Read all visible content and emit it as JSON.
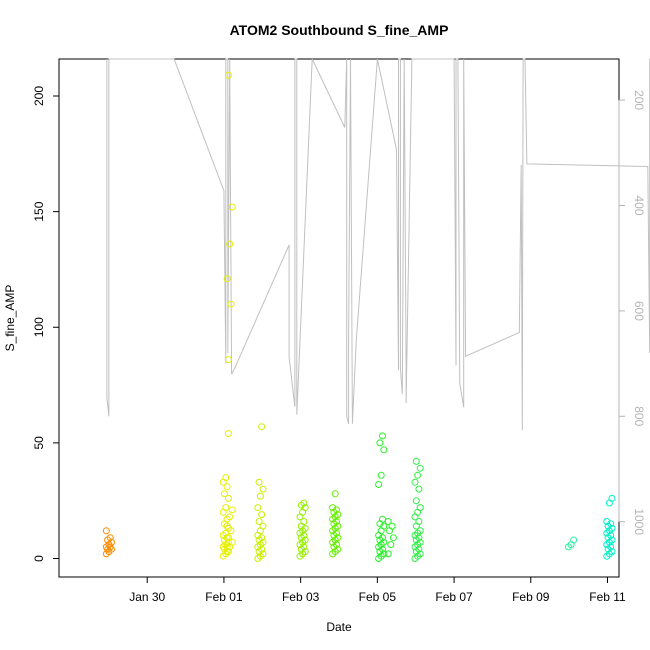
{
  "chart_data": {
    "type": "scatter",
    "title": "ATOM2 Southbound S_fine_AMP",
    "xlabel": "Date",
    "ylabel": "S_fine_AMP",
    "xlim": [
      -2.3,
      12.3
    ],
    "ylim": [
      -8,
      216
    ],
    "x_origin_label": "Jan 30",
    "x_ticks": [
      0,
      2,
      4,
      6,
      8,
      10,
      12
    ],
    "x_tick_labels": [
      "Jan 30",
      "Feb 01",
      "Feb 03",
      "Feb 05",
      "Feb 07",
      "Feb 09",
      "Feb 11"
    ],
    "y_ticks": [
      0,
      50,
      100,
      150,
      200
    ],
    "y_tick_labels": [
      "0",
      "50",
      "100",
      "150",
      "200"
    ],
    "right_axis": {
      "reversed": true,
      "lim": [
        122,
        1105
      ],
      "ticks": [
        200,
        400,
        600,
        800,
        1000
      ],
      "tick_labels": [
        "200",
        "400",
        "600",
        "800",
        "1000"
      ],
      "color": "#b4b4b4"
    },
    "grid": false,
    "legend": "none",
    "series": [
      {
        "marker": "open-circle",
        "groups": [
          {
            "x": -1.0,
            "color": "#ff8c00",
            "values": [
              2,
              3,
              4,
              4,
              5,
              5,
              6,
              7,
              8,
              9,
              12
            ]
          },
          {
            "x": 2.05,
            "color": "#e6f000",
            "values": [
              1,
              2,
              3,
              4,
              5,
              5,
              6,
              7,
              8,
              9,
              10,
              11,
              13,
              15,
              17,
              20,
              22,
              26,
              28,
              31,
              33,
              35,
              54
            ]
          },
          {
            "x": 2.15,
            "color": "#e6f000",
            "values": [
              3,
              5,
              7,
              9,
              12,
              14,
              18,
              21,
              86,
              110,
              121,
              136,
              152,
              209
            ]
          },
          {
            "x": 2.95,
            "color": "#c8f000",
            "values": [
              0,
              1,
              2,
              3,
              4,
              5,
              6,
              7,
              8,
              9,
              10,
              12,
              14,
              16,
              19,
              22,
              27,
              30,
              33,
              57
            ]
          },
          {
            "x": 4.05,
            "color": "#96f000",
            "values": [
              1,
              2,
              3,
              4,
              5,
              6,
              7,
              8,
              9,
              10,
              11,
              12,
              13,
              14,
              16,
              18,
              20,
              22,
              23,
              24
            ]
          },
          {
            "x": 4.9,
            "color": "#64f000",
            "values": [
              2,
              3,
              4,
              5,
              6,
              7,
              8,
              9,
              10,
              11,
              12,
              13,
              14,
              15,
              16,
              17,
              18,
              19,
              20,
              21,
              22,
              28
            ]
          },
          {
            "x": 6.1,
            "color": "#28f028",
            "values": [
              0,
              1,
              2,
              3,
              4,
              5,
              6,
              7,
              8,
              9,
              10,
              12,
              14,
              15,
              17,
              32,
              36,
              47,
              50,
              53
            ]
          },
          {
            "x": 6.35,
            "color": "#28f028",
            "values": [
              2,
              6,
              9,
              12,
              14,
              16
            ]
          },
          {
            "x": 7.05,
            "color": "#32f046",
            "values": [
              0,
              1,
              2,
              3,
              4,
              5,
              6,
              7,
              8,
              9,
              10,
              11,
              12,
              14,
              16,
              18,
              20,
              22,
              25,
              30,
              33,
              36,
              39,
              42
            ]
          },
          {
            "x": 11.05,
            "color": "#28f0a0",
            "values": [
              5,
              6,
              8
            ]
          },
          {
            "x": 12.05,
            "color": "#00f0c8",
            "values": [
              1,
              2,
              3,
              4,
              5,
              6,
              7,
              8,
              9,
              10,
              11,
              12,
              13,
              14,
              15,
              16,
              24,
              26
            ]
          }
        ]
      },
      {
        "marker": "line",
        "axis": "right",
        "color": "#c0c0c0",
        "points": [
          [
            -1.05,
            122
          ],
          [
            -1.05,
            765
          ],
          [
            -1.0,
            800
          ],
          [
            -1.0,
            122
          ],
          [
            0.7,
            122
          ],
          [
            2.0,
            372
          ],
          [
            2.05,
            700
          ],
          [
            2.05,
            122
          ],
          [
            2.1,
            122
          ],
          [
            2.1,
            680
          ],
          [
            2.15,
            122
          ],
          [
            2.2,
            720
          ],
          [
            2.3,
            706
          ],
          [
            3.7,
            475
          ],
          [
            3.7,
            688
          ],
          [
            3.85,
            782
          ],
          [
            3.85,
            122
          ],
          [
            3.9,
            122
          ],
          [
            3.9,
            797
          ],
          [
            4.3,
            122
          ],
          [
            5.15,
            252
          ],
          [
            5.2,
            122
          ],
          [
            5.2,
            800
          ],
          [
            5.25,
            814
          ],
          [
            5.25,
            655
          ],
          [
            5.3,
            122
          ],
          [
            5.35,
            814
          ],
          [
            5.45,
            655
          ],
          [
            6.0,
            122
          ],
          [
            6.5,
            294
          ],
          [
            6.55,
            713
          ],
          [
            6.55,
            122
          ],
          [
            6.6,
            122
          ],
          [
            6.6,
            708
          ],
          [
            6.65,
            758
          ],
          [
            6.7,
            122
          ],
          [
            6.75,
            703
          ],
          [
            6.75,
            775
          ],
          [
            6.9,
            122
          ],
          [
            6.9,
            122
          ],
          [
            8.0,
            122
          ],
          [
            8.05,
            703
          ],
          [
            8.05,
            122
          ],
          [
            8.1,
            122
          ],
          [
            8.15,
            738
          ],
          [
            8.25,
            783
          ],
          [
            8.25,
            122
          ],
          [
            8.3,
            686
          ],
          [
            9.7,
            641
          ],
          [
            9.75,
            323
          ],
          [
            9.78,
            827
          ],
          [
            9.8,
            122
          ],
          [
            9.85,
            122
          ],
          [
            9.9,
            321
          ],
          [
            13.05,
            326
          ],
          [
            13.1,
            680
          ],
          [
            13.1,
            122
          ],
          [
            13.15,
            122
          ],
          [
            13.2,
            690
          ]
        ]
      }
    ]
  }
}
